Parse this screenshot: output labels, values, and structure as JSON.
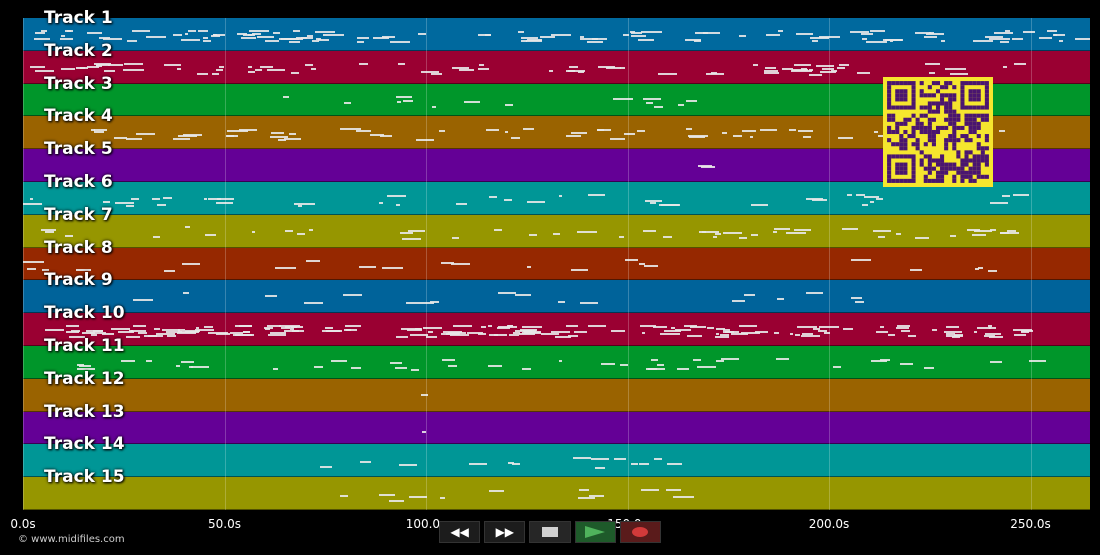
{
  "tracks": [
    {
      "name": "Track 1",
      "color": "#00699e"
    },
    {
      "name": "Track 2",
      "color": "#9a0032"
    },
    {
      "name": "Track 3",
      "color": "#00962a"
    },
    {
      "name": "Track 4",
      "color": "#9a6300"
    },
    {
      "name": "Track 5",
      "color": "#640096"
    },
    {
      "name": "Track 6",
      "color": "#009696"
    },
    {
      "name": "Track 7",
      "color": "#969600"
    },
    {
      "name": "Track 8",
      "color": "#962800"
    },
    {
      "name": "Track 9",
      "color": "#00639a"
    },
    {
      "name": "Track 10",
      "color": "#9a0032"
    },
    {
      "name": "Track 11",
      "color": "#00962a"
    },
    {
      "name": "Track 12",
      "color": "#9a6300"
    },
    {
      "name": "Track 13",
      "color": "#640096"
    },
    {
      "name": "Track 14",
      "color": "#009696"
    },
    {
      "name": "Track 15",
      "color": "#969600"
    }
  ],
  "timeline": {
    "unit": "s",
    "ticks": [
      "0.0s",
      "50.0s",
      "100.0s",
      "150.0s",
      "200.0s",
      "250.0s"
    ]
  },
  "copyright": "© www.midifiles.com",
  "transport": {
    "rewind_icon": "rewind-icon",
    "rewind_label": "◀◀",
    "forward_icon": "fast-forward-icon",
    "forward_label": "▶▶",
    "stop_icon": "stop-icon",
    "play_icon": "play-icon",
    "record_icon": "record-icon",
    "play_color": "#4fb35c",
    "record_color": "#d23a3a"
  },
  "qr_icon": "qr-code-icon"
}
